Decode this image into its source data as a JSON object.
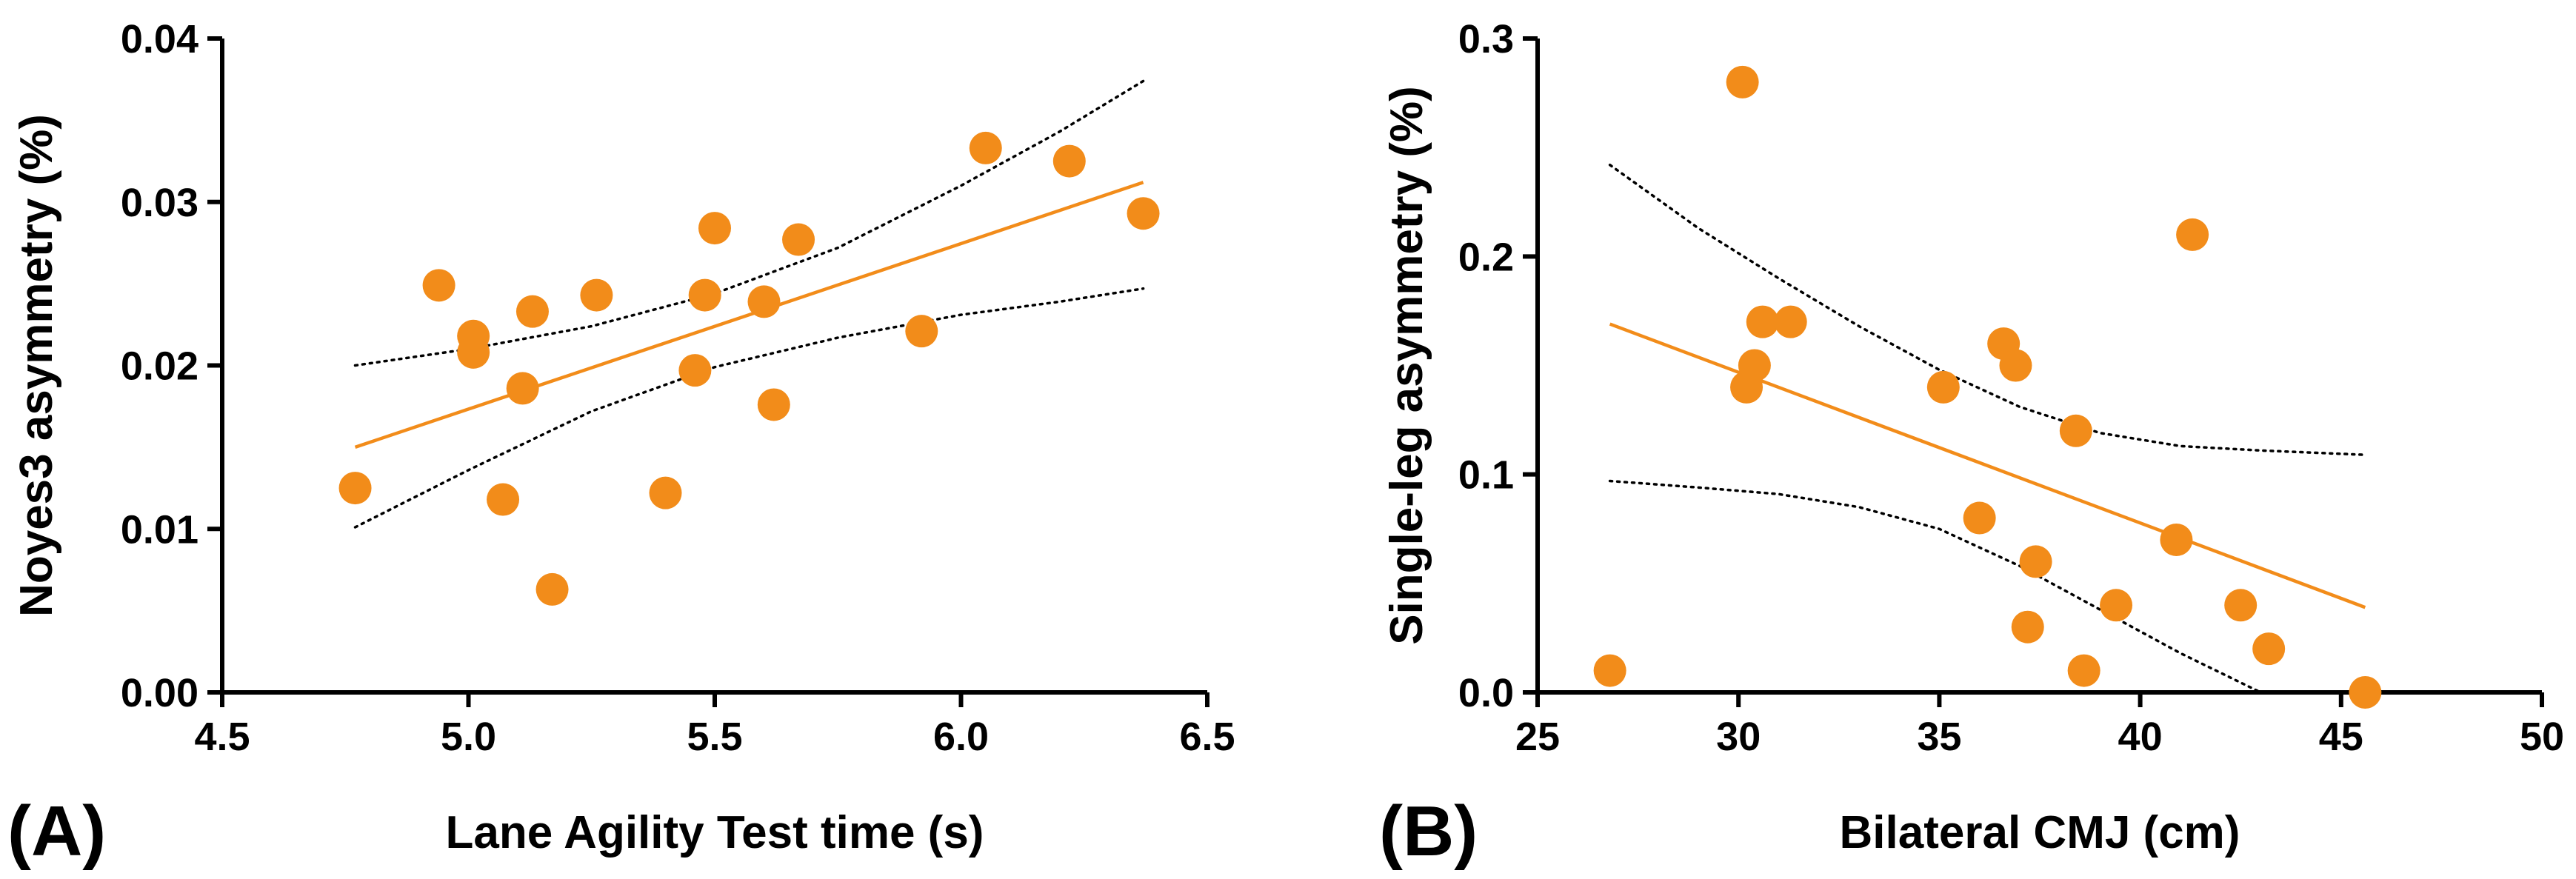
{
  "colors": {
    "points": "#F28C1A",
    "fit": "#F28C1A",
    "ci": "#000000",
    "axis": "#000000"
  },
  "chart_data": [
    {
      "type": "scatter",
      "panel_label": "(A)",
      "xlabel": "Lane Agility Test time (s)",
      "ylabel": "Noyes3 asymmetry (%)",
      "xlim": [
        4.5,
        6.5
      ],
      "ylim": [
        0.0,
        0.04
      ],
      "xticks": [
        "4.5",
        "5.0",
        "5.5",
        "6.0",
        "6.5"
      ],
      "yticks": [
        "0.00",
        "0.01",
        "0.02",
        "0.03",
        "0.04"
      ],
      "grid": false,
      "points": [
        {
          "x": 4.77,
          "y": 0.0125
        },
        {
          "x": 4.94,
          "y": 0.0249
        },
        {
          "x": 5.01,
          "y": 0.0218
        },
        {
          "x": 5.01,
          "y": 0.0208
        },
        {
          "x": 5.07,
          "y": 0.0118
        },
        {
          "x": 5.11,
          "y": 0.0186
        },
        {
          "x": 5.13,
          "y": 0.0233
        },
        {
          "x": 5.17,
          "y": 0.0063
        },
        {
          "x": 5.26,
          "y": 0.0243
        },
        {
          "x": 5.4,
          "y": 0.0122
        },
        {
          "x": 5.46,
          "y": 0.0197
        },
        {
          "x": 5.48,
          "y": 0.0243
        },
        {
          "x": 5.5,
          "y": 0.0284
        },
        {
          "x": 5.6,
          "y": 0.0239
        },
        {
          "x": 5.62,
          "y": 0.0176
        },
        {
          "x": 5.67,
          "y": 0.0277
        },
        {
          "x": 5.92,
          "y": 0.0221
        },
        {
          "x": 6.05,
          "y": 0.0333
        },
        {
          "x": 6.22,
          "y": 0.0325
        },
        {
          "x": 6.37,
          "y": 0.0293
        }
      ],
      "fit_line": {
        "x": [
          4.77,
          6.37
        ],
        "y": [
          0.015,
          0.0312
        ]
      },
      "ci_upper": {
        "x": [
          4.77,
          5.0,
          5.25,
          5.5,
          5.75,
          6.0,
          6.2,
          6.37
        ],
        "y": [
          0.02,
          0.021,
          0.0224,
          0.0244,
          0.0272,
          0.031,
          0.0343,
          0.0374
        ]
      },
      "ci_lower": {
        "x": [
          4.77,
          5.0,
          5.25,
          5.5,
          5.75,
          6.0,
          6.2,
          6.37
        ],
        "y": [
          0.0101,
          0.0136,
          0.0172,
          0.0199,
          0.0217,
          0.0231,
          0.0239,
          0.0247
        ]
      }
    },
    {
      "type": "scatter",
      "panel_label": "(B)",
      "xlabel": "Bilateral CMJ (cm)",
      "ylabel": "Single-leg asymmetry (%)",
      "xlim": [
        25,
        50
      ],
      "ylim": [
        0.0,
        0.3
      ],
      "xticks": [
        "25",
        "30",
        "35",
        "40",
        "45",
        "50"
      ],
      "yticks": [
        "0.0",
        "0.1",
        "0.2",
        "0.3"
      ],
      "grid": false,
      "points": [
        {
          "x": 26.8,
          "y": 0.01
        },
        {
          "x": 30.1,
          "y": 0.28
        },
        {
          "x": 30.2,
          "y": 0.14
        },
        {
          "x": 30.4,
          "y": 0.15
        },
        {
          "x": 30.6,
          "y": 0.17
        },
        {
          "x": 31.3,
          "y": 0.17
        },
        {
          "x": 35.1,
          "y": 0.14
        },
        {
          "x": 36.0,
          "y": 0.08
        },
        {
          "x": 36.6,
          "y": 0.16
        },
        {
          "x": 36.9,
          "y": 0.15
        },
        {
          "x": 37.2,
          "y": 0.03
        },
        {
          "x": 37.4,
          "y": 0.06
        },
        {
          "x": 38.4,
          "y": 0.12
        },
        {
          "x": 38.6,
          "y": 0.01
        },
        {
          "x": 39.4,
          "y": 0.04
        },
        {
          "x": 40.9,
          "y": 0.07
        },
        {
          "x": 41.3,
          "y": 0.21
        },
        {
          "x": 42.5,
          "y": 0.04
        },
        {
          "x": 43.2,
          "y": 0.02
        },
        {
          "x": 45.6,
          "y": 0.0
        }
      ],
      "fit_line": {
        "x": [
          26.8,
          45.6
        ],
        "y": [
          0.169,
          0.039
        ]
      },
      "ci_upper": {
        "x": [
          26.8,
          29,
          31,
          33,
          35,
          37,
          39,
          41,
          43,
          45.6
        ],
        "y": [
          0.242,
          0.213,
          0.19,
          0.168,
          0.148,
          0.131,
          0.119,
          0.113,
          0.111,
          0.109
        ]
      },
      "ci_lower": {
        "x": [
          26.8,
          29,
          31,
          33,
          35,
          37,
          39,
          41,
          43
        ],
        "y": [
          0.097,
          0.094,
          0.091,
          0.085,
          0.075,
          0.058,
          0.038,
          0.018,
          0.0
        ]
      }
    }
  ]
}
